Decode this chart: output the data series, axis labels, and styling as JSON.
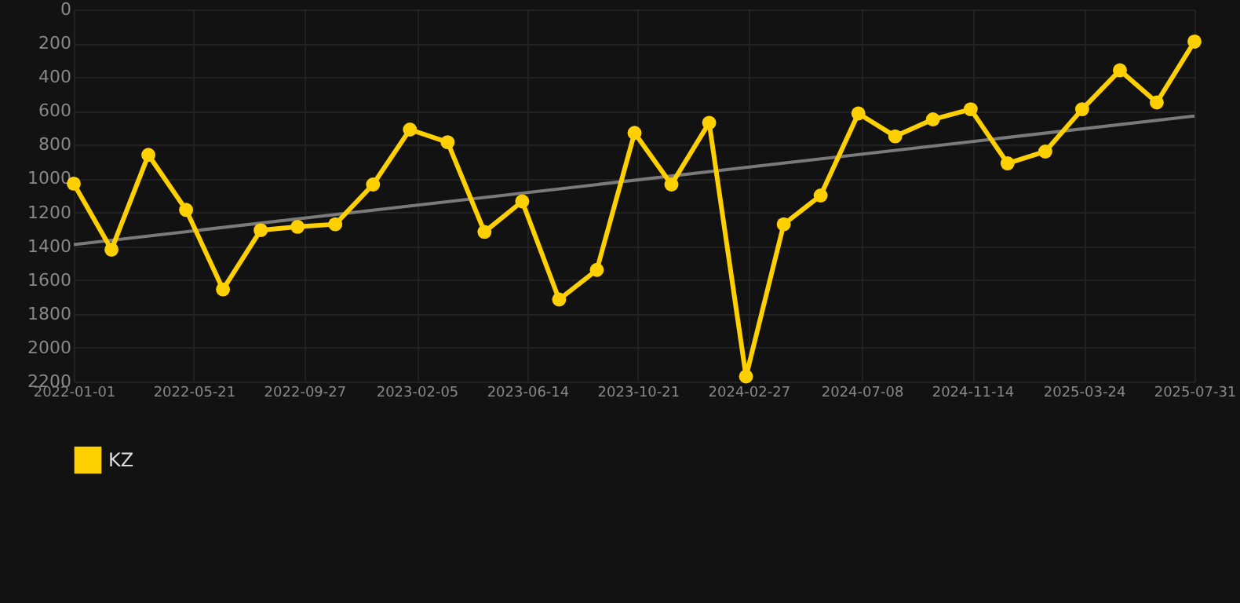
{
  "chart_data": {
    "type": "line",
    "x": [
      "2022-01-01",
      "2022-02-14",
      "2022-03-29",
      "2022-05-12",
      "2022-06-24",
      "2022-08-07",
      "2022-09-19",
      "2022-11-02",
      "2022-12-16",
      "2023-01-28",
      "2023-03-13",
      "2023-04-25",
      "2023-06-08",
      "2023-07-21",
      "2023-09-03",
      "2023-10-17",
      "2023-11-29",
      "2024-01-12",
      "2024-02-24",
      "2024-04-08",
      "2024-05-21",
      "2024-07-04",
      "2024-08-16",
      "2024-09-29",
      "2024-11-12",
      "2024-12-25",
      "2025-02-07",
      "2025-03-22",
      "2025-05-05",
      "2025-06-17",
      "2025-07-31"
    ],
    "series": [
      {
        "name": "KZ",
        "color": "#ffd000",
        "marker": "circle",
        "values": [
          1030,
          1420,
          860,
          1185,
          1655,
          1305,
          1285,
          1270,
          1035,
          710,
          785,
          1315,
          1135,
          1715,
          1540,
          730,
          1035,
          670,
          2170,
          1270,
          1100,
          615,
          750,
          650,
          590,
          910,
          840,
          590,
          360,
          550,
          190
        ]
      },
      {
        "type": "line",
        "color": "#7a7a7a",
        "marker": "none",
        "x": [
          "2022-01-01",
          "2025-07-31"
        ],
        "values": [
          1390,
          630
        ]
      }
    ],
    "xlim": [
      "2022-01-01",
      "2025-07-31"
    ],
    "xticks": [
      "2022-01-01",
      "2022-05-21",
      "2022-09-27",
      "2023-02-05",
      "2023-06-14",
      "2023-10-21",
      "2024-02-27",
      "2024-07-08",
      "2024-11-14",
      "2025-03-24",
      "2025-07-31"
    ],
    "ylim": [
      2200,
      0
    ],
    "yticks": [
      0,
      200,
      400,
      600,
      800,
      1000,
      1200,
      1400,
      1600,
      1800,
      2000,
      2200
    ],
    "grid": true,
    "legend": "bottom",
    "line_style": "solid"
  }
}
